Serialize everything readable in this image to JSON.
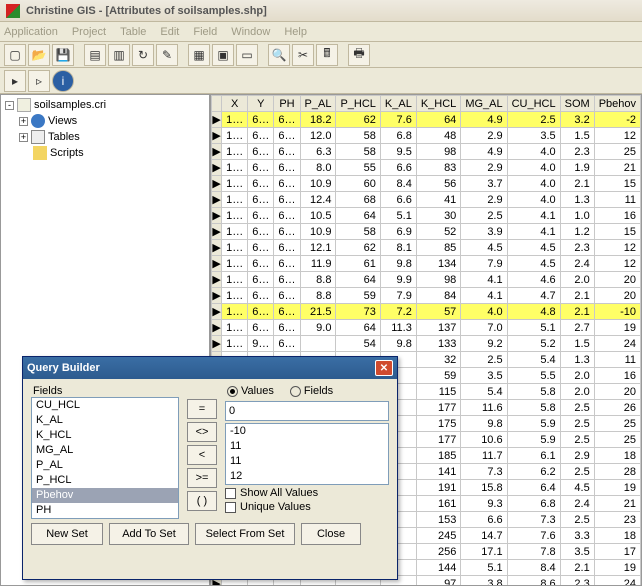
{
  "window_title": "Christine GIS - [Attributes of soilsamples.shp]",
  "menus": [
    "Application",
    "Project",
    "Table",
    "Edit",
    "Field",
    "Window",
    "Help"
  ],
  "tree": {
    "root": "soilsamples.cri",
    "items": [
      {
        "label": "Views"
      },
      {
        "label": "Tables"
      },
      {
        "label": "Scripts"
      }
    ]
  },
  "columns": [
    "X",
    "Y",
    "PH",
    "P_AL",
    "P_HCL",
    "K_AL",
    "K_HCL",
    "MG_AL",
    "CU_HCL",
    "SOM",
    "Pbehov"
  ],
  "rows": [
    {
      "hl": true,
      "cells": [
        "1…",
        "6…",
        "6…",
        "18.2",
        "62",
        "7.6",
        "64",
        "4.9",
        "2.5",
        "3.2",
        "-2"
      ]
    },
    {
      "cells": [
        "1…",
        "6…",
        "6…",
        "12.0",
        "58",
        "6.8",
        "48",
        "2.9",
        "3.5",
        "1.5",
        "12"
      ]
    },
    {
      "cells": [
        "1…",
        "6…",
        "6…",
        "6.3",
        "58",
        "9.5",
        "98",
        "4.9",
        "4.0",
        "2.3",
        "25"
      ]
    },
    {
      "cells": [
        "1…",
        "6…",
        "6…",
        "8.0",
        "55",
        "6.6",
        "83",
        "2.9",
        "4.0",
        "1.9",
        "21"
      ]
    },
    {
      "cells": [
        "1…",
        "6…",
        "6…",
        "10.9",
        "60",
        "8.4",
        "56",
        "3.7",
        "4.0",
        "2.1",
        "15"
      ]
    },
    {
      "cells": [
        "1…",
        "6…",
        "6…",
        "12.4",
        "68",
        "6.6",
        "41",
        "2.9",
        "4.0",
        "1.3",
        "11"
      ]
    },
    {
      "cells": [
        "1…",
        "6…",
        "6…",
        "10.5",
        "64",
        "5.1",
        "30",
        "2.5",
        "4.1",
        "1.0",
        "16"
      ]
    },
    {
      "cells": [
        "1…",
        "6…",
        "6…",
        "10.9",
        "58",
        "6.9",
        "52",
        "3.9",
        "4.1",
        "1.2",
        "15"
      ]
    },
    {
      "cells": [
        "1…",
        "6…",
        "6…",
        "12.1",
        "62",
        "8.1",
        "85",
        "4.5",
        "4.5",
        "2.3",
        "12"
      ]
    },
    {
      "cells": [
        "1…",
        "6…",
        "6…",
        "11.9",
        "61",
        "9.8",
        "134",
        "7.9",
        "4.5",
        "2.4",
        "12"
      ]
    },
    {
      "cells": [
        "1…",
        "6…",
        "6…",
        "8.8",
        "64",
        "9.9",
        "98",
        "4.1",
        "4.6",
        "2.0",
        "20"
      ]
    },
    {
      "cells": [
        "1…",
        "6…",
        "6…",
        "8.8",
        "59",
        "7.9",
        "84",
        "4.1",
        "4.7",
        "2.1",
        "20"
      ]
    },
    {
      "hl": true,
      "cells": [
        "1…",
        "6…",
        "6…",
        "21.5",
        "73",
        "7.2",
        "57",
        "4.0",
        "4.8",
        "2.1",
        "-10"
      ]
    },
    {
      "cells": [
        "1…",
        "6…",
        "6…",
        "9.0",
        "64",
        "11.3",
        "137",
        "7.0",
        "5.1",
        "2.7",
        "19"
      ]
    },
    {
      "cells": [
        "1…",
        "9…",
        "6…",
        "",
        "54",
        "9.8",
        "133",
        "9.2",
        "5.2",
        "1.5",
        "24"
      ]
    },
    {
      "cells": [
        "",
        "",
        "",
        "",
        "",
        "",
        "32",
        "2.5",
        "5.4",
        "1.3",
        "11"
      ]
    },
    {
      "cells": [
        "",
        "",
        "",
        "",
        "",
        "",
        "59",
        "3.5",
        "5.5",
        "2.0",
        "16"
      ]
    },
    {
      "cells": [
        "",
        "",
        "",
        "",
        "",
        "",
        "115",
        "5.4",
        "5.8",
        "2.0",
        "20"
      ]
    },
    {
      "cells": [
        "",
        "",
        "",
        "",
        "",
        "",
        "177",
        "11.6",
        "5.8",
        "2.5",
        "26"
      ]
    },
    {
      "cells": [
        "",
        "",
        "",
        "",
        "",
        "",
        "175",
        "9.8",
        "5.9",
        "2.5",
        "25"
      ]
    },
    {
      "cells": [
        "",
        "",
        "",
        "",
        "",
        "",
        "177",
        "10.6",
        "5.9",
        "2.5",
        "25"
      ]
    },
    {
      "cells": [
        "",
        "",
        "",
        "",
        "",
        "",
        "185",
        "11.7",
        "6.1",
        "2.9",
        "18"
      ]
    },
    {
      "cells": [
        "",
        "",
        "",
        "",
        "",
        "",
        "141",
        "7.3",
        "6.2",
        "2.5",
        "28"
      ]
    },
    {
      "cells": [
        "",
        "",
        "",
        "",
        "",
        "",
        "191",
        "15.8",
        "6.4",
        "4.5",
        "19"
      ]
    },
    {
      "cells": [
        "",
        "",
        "",
        "",
        "",
        "",
        "161",
        "9.3",
        "6.8",
        "2.4",
        "21"
      ]
    },
    {
      "cells": [
        "",
        "",
        "",
        "",
        "",
        "",
        "153",
        "6.6",
        "7.3",
        "2.5",
        "23"
      ]
    },
    {
      "cells": [
        "",
        "",
        "",
        "",
        "",
        "",
        "245",
        "14.7",
        "7.6",
        "3.3",
        "18"
      ]
    },
    {
      "cells": [
        "",
        "",
        "",
        "",
        "",
        "",
        "256",
        "17.1",
        "7.8",
        "3.5",
        "17"
      ]
    },
    {
      "cells": [
        "",
        "",
        "",
        "",
        "",
        "",
        "144",
        "5.1",
        "8.4",
        "2.1",
        "19"
      ]
    },
    {
      "cells": [
        "",
        "",
        "",
        "",
        "",
        "",
        "97",
        "3.8",
        "8.6",
        "2.3",
        "24"
      ]
    },
    {
      "cells": [
        "",
        "",
        "",
        "",
        "",
        "",
        "214",
        "8.7",
        "10.5",
        "2.9",
        "24"
      ]
    }
  ],
  "query": {
    "title": "Query Builder",
    "fields_label": "Fields",
    "fields": [
      "CU_HCL",
      "K_AL",
      "K_HCL",
      "MG_AL",
      "P_AL",
      "P_HCL",
      "Pbehov",
      "PH",
      "SOM"
    ],
    "selected_field": "Pbehov",
    "ops": [
      "=",
      "<>",
      "<",
      ">=",
      "( )"
    ],
    "radio_values_label": "Values",
    "radio_fields_label": "Fields",
    "value_input": "0",
    "values_list": [
      "-10",
      "11",
      "11",
      "12",
      "12"
    ],
    "chk_show_all": "Show All Values",
    "chk_unique": "Unique Values",
    "btn_new_set": "New Set",
    "btn_add_to_set": "Add To Set",
    "btn_select_from_set": "Select From Set",
    "btn_close": "Close"
  }
}
